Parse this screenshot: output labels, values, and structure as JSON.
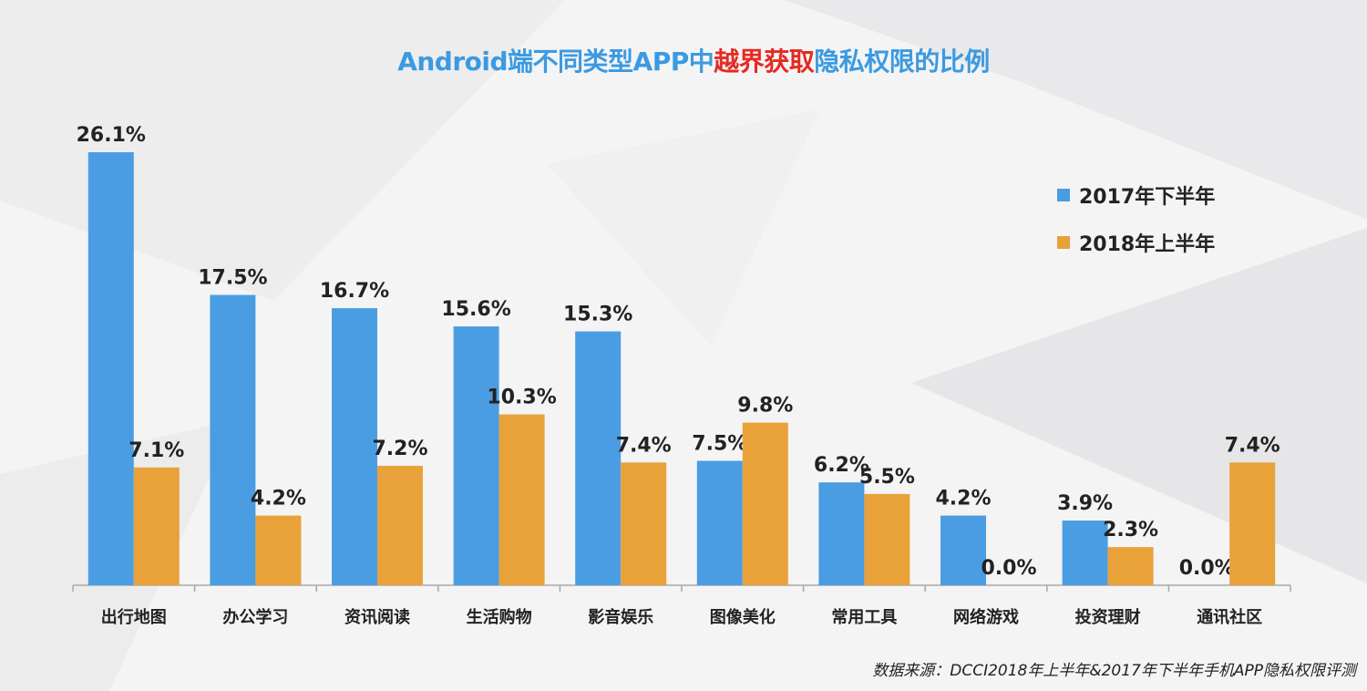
{
  "title": {
    "part1": "Android端不同类型APP中",
    "highlight": "越界获取",
    "part2": "隐私权限的比例"
  },
  "source": "数据来源：DCCI2018年上半年&2017年下半年手机APP隐私权限评测",
  "colors": {
    "series_2017": "#4a9de3",
    "series_2018": "#e9a13a",
    "title_blue": "#3b9ae1",
    "title_red": "#e52a22"
  },
  "chart_data": {
    "type": "bar",
    "categories": [
      "出行地图",
      "办公学习",
      "资讯阅读",
      "生活购物",
      "影音娱乐",
      "图像美化",
      "常用工具",
      "网络游戏",
      "投资理财",
      "通讯社区"
    ],
    "series": [
      {
        "name": "2017年下半年",
        "values": [
          26.1,
          17.5,
          16.7,
          15.6,
          15.3,
          7.5,
          6.2,
          4.2,
          3.9,
          0.0
        ],
        "labels": [
          "26.1%",
          "17.5%",
          "16.7%",
          "15.6%",
          "15.3%",
          "7.5%",
          "6.2%",
          "4.2%",
          "3.9%",
          "0.0%"
        ]
      },
      {
        "name": "2018年上半年",
        "values": [
          7.1,
          4.2,
          7.2,
          10.3,
          7.4,
          9.8,
          5.5,
          0.0,
          2.3,
          7.4
        ],
        "labels": [
          "7.1%",
          "4.2%",
          "7.2%",
          "10.3%",
          "7.4%",
          "9.8%",
          "5.5%",
          "0.0%",
          "2.3%",
          "7.4%"
        ]
      }
    ],
    "title": "Android端不同类型APP中越界获取隐私权限的比例",
    "xlabel": "",
    "ylabel": "",
    "ylim": [
      0,
      26.1
    ],
    "grid": false,
    "legend_position": "top-right"
  }
}
